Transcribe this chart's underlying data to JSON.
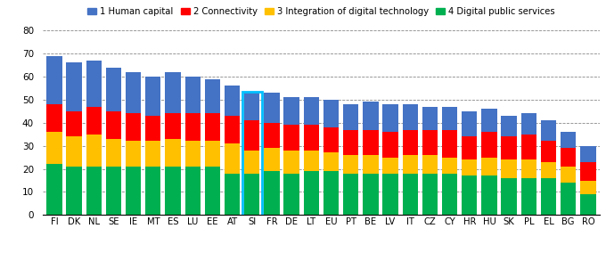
{
  "countries": [
    "FI",
    "DK",
    "NL",
    "SE",
    "IE",
    "MT",
    "ES",
    "LU",
    "EE",
    "AT",
    "SI",
    "FR",
    "DE",
    "LT",
    "EU",
    "PT",
    "BE",
    "LV",
    "IT",
    "CZ",
    "CY",
    "HR",
    "HU",
    "SK",
    "PL",
    "EL",
    "BG",
    "RO"
  ],
  "human_capital": [
    21,
    21,
    20,
    19,
    18,
    17,
    18,
    16,
    15,
    13,
    12,
    13,
    12,
    12,
    12,
    11,
    12,
    12,
    11,
    10,
    10,
    11,
    10,
    9,
    9,
    9,
    7,
    7
  ],
  "connectivity": [
    12,
    11,
    12,
    12,
    12,
    11,
    11,
    12,
    12,
    12,
    13,
    11,
    11,
    11,
    11,
    11,
    11,
    11,
    11,
    11,
    12,
    10,
    11,
    10,
    11,
    9,
    8,
    8
  ],
  "integration": [
    14,
    13,
    14,
    12,
    11,
    11,
    12,
    11,
    11,
    13,
    10,
    10,
    10,
    9,
    8,
    8,
    8,
    7,
    8,
    8,
    7,
    7,
    8,
    8,
    8,
    7,
    7,
    6
  ],
  "digital_services": [
    22,
    21,
    21,
    21,
    21,
    21,
    21,
    21,
    21,
    18,
    18,
    19,
    18,
    19,
    19,
    18,
    18,
    18,
    18,
    18,
    18,
    17,
    17,
    16,
    16,
    16,
    14,
    9
  ],
  "highlight_country": "SI",
  "colors": {
    "human_capital": "#4472C4",
    "connectivity": "#FF0000",
    "integration": "#FFC000",
    "digital_services": "#00B050"
  },
  "highlight_box_color": "#00BFFF",
  "ylim": [
    0,
    80
  ],
  "yticks": [
    0,
    10,
    20,
    30,
    40,
    50,
    60,
    70,
    80
  ],
  "legend_labels": [
    "1 Human capital",
    "2 Connectivity",
    "3 Integration of digital technology",
    "4 Digital public services"
  ]
}
